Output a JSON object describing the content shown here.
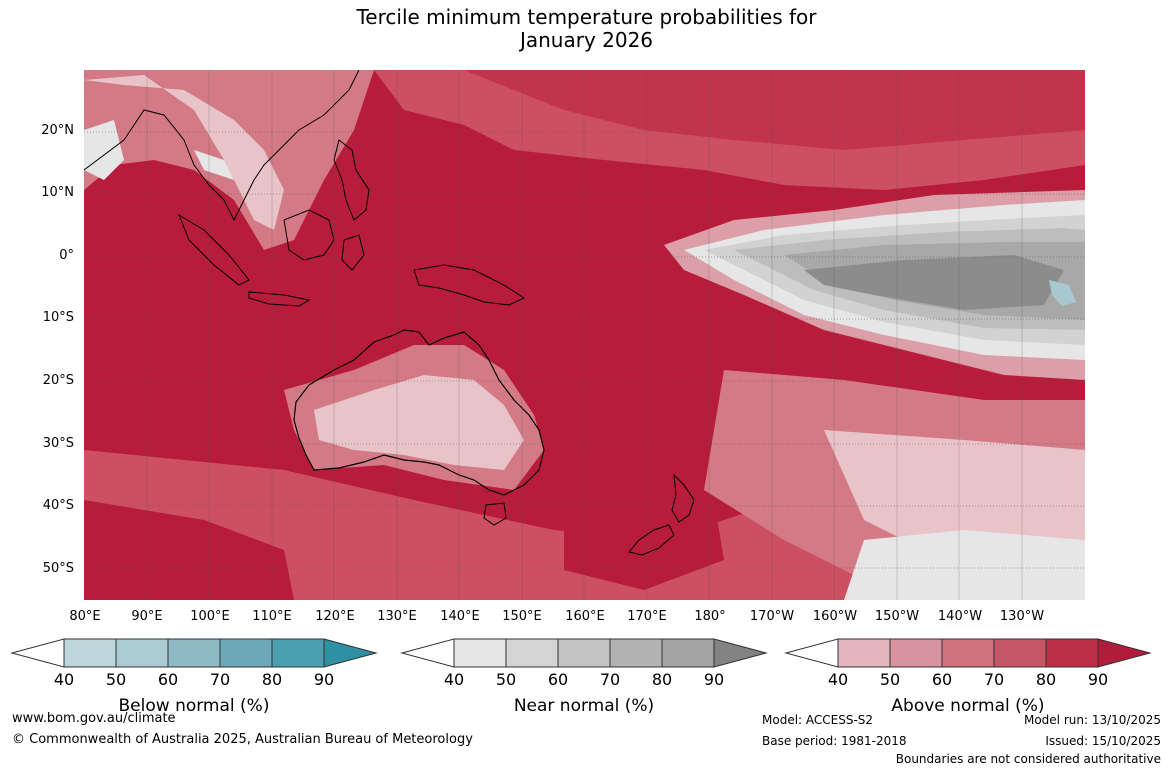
{
  "title": {
    "line1": "Tercile minimum temperature probabilities for",
    "line2": "January 2026"
  },
  "map": {
    "lat_labels": [
      "20°N",
      "10°N",
      "0°",
      "10°S",
      "20°S",
      "30°S",
      "40°S",
      "50°S"
    ],
    "lon_labels": [
      "80°E",
      "90°E",
      "100°E",
      "110°E",
      "120°E",
      "130°E",
      "140°E",
      "150°E",
      "160°E",
      "170°E",
      "180°",
      "170°W",
      "160°W",
      "150°W",
      "140°W",
      "130°W"
    ],
    "colors": {
      "background": "#b71c3b",
      "above_90": "#b71c3b",
      "above_80": "#c2334c",
      "above_70": "#cc4f62",
      "above_60": "#d47a86",
      "above_50": "#dc9fa8",
      "above_40": "#e8c4c9",
      "near_40": "#e6e6e6",
      "near_50": "#d2d2d2",
      "near_60": "#bdbdbd",
      "near_70": "#a8a8a8",
      "near_80": "#8c8c8c",
      "below_50": "#a8c8d0",
      "coast": "#000000"
    }
  },
  "legends": [
    {
      "name": "Below normal (%)",
      "ticks": [
        "40",
        "50",
        "60",
        "70",
        "80",
        "90"
      ],
      "colors": [
        "#ffffff",
        "#bdd6dc",
        "#a9cbd1",
        "#8db8c4",
        "#6ba9b8",
        "#4b9fb1",
        "#2f8fa3"
      ]
    },
    {
      "name": "Near normal (%)",
      "ticks": [
        "40",
        "50",
        "60",
        "70",
        "80",
        "90"
      ],
      "colors": [
        "#ffffff",
        "#e6e6e6",
        "#d4d4d4",
        "#c3c3c3",
        "#b3b3b3",
        "#a3a3a3",
        "#838383"
      ]
    },
    {
      "name": "Above normal (%)",
      "ticks": [
        "40",
        "50",
        "60",
        "70",
        "80",
        "90"
      ],
      "colors": [
        "#ffffff",
        "#e3b6bf",
        "#d9939e",
        "#cf737e",
        "#c65767",
        "#bd3048",
        "#b11c3a"
      ]
    }
  ],
  "footer": {
    "website": "www.bom.gov.au/climate",
    "copyright": "© Commonwealth of Australia 2025, Australian Bureau of Meteorology",
    "model": "Model: ACCESS-S2",
    "base_period": "Base period: 1981-2018",
    "model_run": "Model run: 13/10/2025",
    "issued": "Issued: 15/10/2025",
    "disclaimer": "Boundaries are not considered authoritative"
  }
}
